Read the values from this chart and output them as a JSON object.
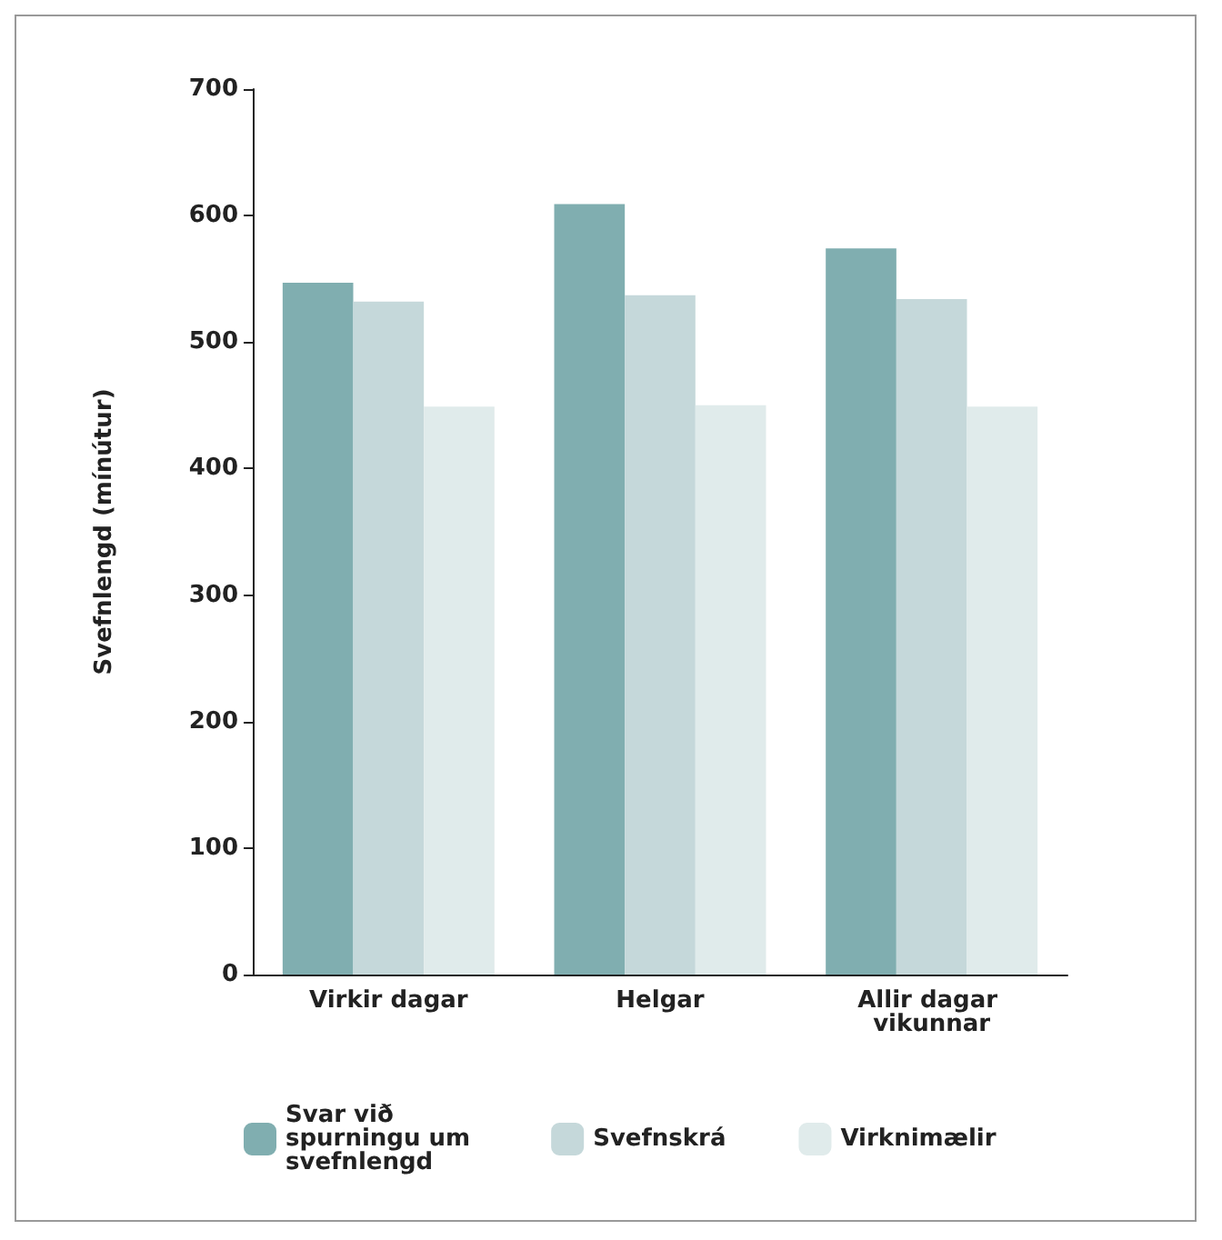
{
  "chart_data": {
    "type": "bar",
    "ylabel": "Svefnlengd (mínútur)",
    "categories": [
      "Virkir dagar",
      "Helgar",
      "Allir dagar vikunnar"
    ],
    "series": [
      {
        "name": "Svar við spurningu um svefnlengd",
        "color": "#80aeb0",
        "values": [
          547,
          609,
          574
        ]
      },
      {
        "name": "Svefnskrá",
        "color": "#c5d8da",
        "values": [
          532,
          537,
          534
        ]
      },
      {
        "name": "Virknimælir",
        "color": "#e0ebeb",
        "values": [
          449,
          450,
          449
        ]
      }
    ],
    "ylim": [
      0,
      700
    ],
    "yticks": [
      0,
      100,
      200,
      300,
      400,
      500,
      600,
      700
    ],
    "grid": false,
    "legend": "bottom"
  }
}
